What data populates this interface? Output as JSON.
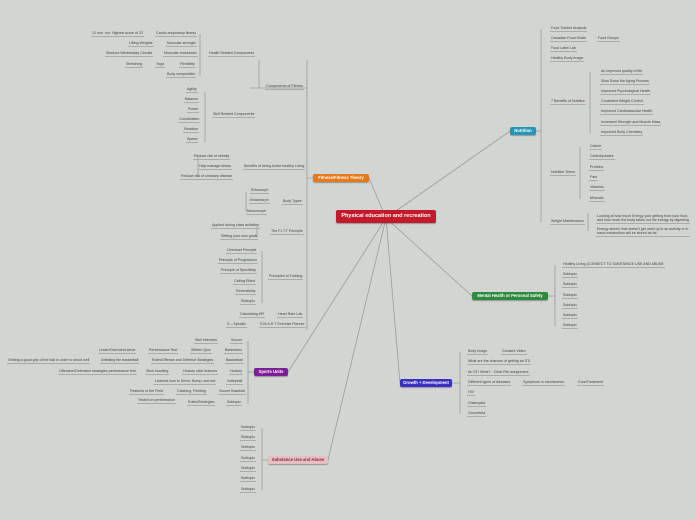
{
  "central": "Physical education and recreation",
  "fitness": {
    "title": "Fitness/Fitness Theory",
    "color": "#e37a1c",
    "components": {
      "label": "Components of Fitness",
      "health": {
        "label": "Health Related Components",
        "items": [
          "Cardio-respiratory fitness",
          "Muscular strength",
          "Muscular endurance",
          "Flexibility",
          "Body composition"
        ],
        "details": [
          "12 min. run: Highest score of 22",
          "Lifting Weights",
          "Workout Wednesday Circuits",
          "Yoga",
          "Stretching"
        ]
      },
      "skill": {
        "label": "Skill Related Components",
        "items": [
          "Agility",
          "Balance",
          "Power",
          "Coordination",
          "Reaction",
          "Speed"
        ]
      }
    },
    "benefits": {
      "label": "Benefits of being Active healthy Living",
      "items": [
        "Reduce risk of obesity",
        "Help manage stress",
        "Reduce risk of coronary disease"
      ]
    },
    "body_types": {
      "label": "Body Types",
      "items": [
        "Ectomorph",
        "Endomorph",
        "Mesomorph"
      ]
    },
    "fitt": {
      "label": "The F.I.T.T Principle",
      "items": [
        "Applied during class activities",
        "Setting your own goals"
      ]
    },
    "training": {
      "label": "Principles of Training",
      "items": [
        "Overload Principle",
        "Principle of Progression",
        "Principle of Specificity",
        "Ceiling Effect",
        "Reversibility",
        "Subtopic"
      ]
    },
    "hr": {
      "label": "Heart Rate Lab",
      "item": "Calculating HR"
    },
    "smart": {
      "label": "S.M.A.R.T Exercise Planner",
      "item": "S – Specific"
    }
  },
  "sports": {
    "title": "Sports Units",
    "color": "#7d1e98",
    "rows": [
      [
        "Soccer",
        "Skill Interview"
      ],
      [
        "Badminton",
        "Written Quiz",
        "Performance Test",
        "Under/Overhand serve"
      ],
      [
        "Basketball",
        "Rules/Offense and Defense Strategies",
        "Dribbling the basketball",
        "Getting a good grip of the ball in order to shoot well"
      ],
      [
        "Hockey",
        "Hockey stick features",
        "Stick handling",
        "Offensive/Defensive strategies performance test"
      ],
      [
        "Volleyball",
        "Learned how to Serve, Bump, and set"
      ],
      [
        "Soccer Baseball",
        "Catching, Fielding",
        "Features of the Field"
      ],
      [
        "Subtopic",
        "Rules/Strategies",
        "Tested on performance"
      ]
    ]
  },
  "substance": {
    "title": "Substance Use and Abuse",
    "color": "#e5bfc3",
    "items": [
      "Subtopic",
      "Subtopic",
      "Subtopic",
      "Subtopic",
      "Subtopic",
      "Subtopic",
      "Subtopic"
    ]
  },
  "nutrition": {
    "title": "Nutrition",
    "color": "#2596b8",
    "items": [
      "Food Tracker Analysis",
      "Canadian Food Guide",
      "Food Label Lab",
      "Healthy Body Image",
      "7 Benefits of Nutrition",
      "Nutrition Terms",
      "Weight Maintenance"
    ],
    "food_groups": "Food Groups",
    "benefits": [
      "An improved quality of life",
      "Slow Down the Aging Process",
      "Improved Psychological Health",
      "Consistent Weight Control",
      "Improved Cardiovascular Health",
      "Increased Strength and Muscle Mass",
      "Improved Body Chemistry"
    ],
    "terms": [
      "Calorie",
      "Carbohydrates",
      "Proteins",
      "Fats",
      "Vitamins",
      "Minerals"
    ],
    "weight": [
      "Looking at how much Energy your getting from your food, and how much the body takes out the energy by digesting",
      "Energy stored, that doesn't get used up in an activity or in basic metabolism will be stored as fat."
    ]
  },
  "mental": {
    "title": "Mental Health or Personal Safety",
    "color": "#2e8b3e",
    "items": [
      "Healthy Living (CONNECT TO SUBSTANCE USE AND ABUSE",
      "Subtopic",
      "Subtopic",
      "Subtopic",
      "Subtopic",
      "Subtopic",
      "Subtopic"
    ]
  },
  "growth": {
    "title": "Growth + Development",
    "color": "#3a2fc4",
    "items": [
      "Body Image",
      "What are the chances of getting an STI",
      "An STI What? - Clinic File assignment",
      "Different types of diseases",
      "HIV",
      "Chlamydia",
      "Gonorrhea"
    ],
    "consent": "Consent Video",
    "symptoms": "Symptoms in men/women",
    "cure": "Cure/Treatment"
  }
}
